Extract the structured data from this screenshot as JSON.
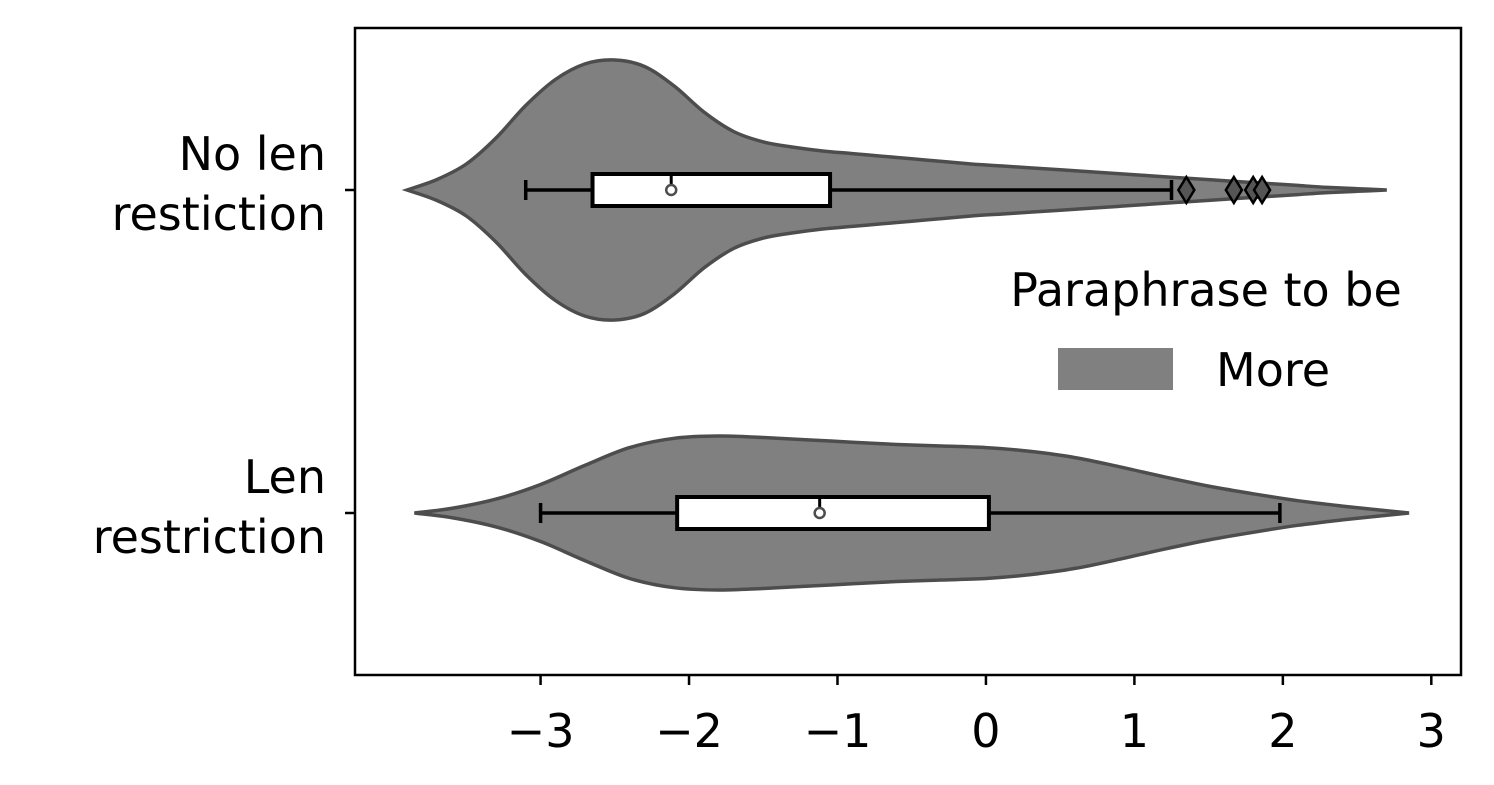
{
  "chart_data": {
    "type": "violin",
    "orientation": "horizontal",
    "categories": [
      {
        "lines": [
          "No len",
          "restiction"
        ]
      },
      {
        "lines": [
          "Len",
          "restriction"
        ]
      }
    ],
    "x_ticks": [
      -3,
      -2,
      -1,
      0,
      1,
      2,
      3
    ],
    "x_tick_labels": [
      "−3",
      "−2",
      "−1",
      "0",
      "1",
      "2",
      "3"
    ],
    "xlim": [
      -4.25,
      3.2
    ],
    "legend": {
      "title": "Paraphrase to be",
      "entries": [
        "More"
      ],
      "placement": "center-right"
    },
    "fill_color": "#808080",
    "edge_color": "#4d4d4d",
    "violins": [
      {
        "range": [
          -3.9,
          2.7
        ],
        "density_profile": [
          [
            -3.9,
            0.0
          ],
          [
            -3.7,
            0.08
          ],
          [
            -3.5,
            0.2
          ],
          [
            -3.3,
            0.4
          ],
          [
            -3.1,
            0.65
          ],
          [
            -2.9,
            0.85
          ],
          [
            -2.7,
            0.97
          ],
          [
            -2.5,
            1.0
          ],
          [
            -2.3,
            0.95
          ],
          [
            -2.1,
            0.8
          ],
          [
            -1.9,
            0.6
          ],
          [
            -1.7,
            0.45
          ],
          [
            -1.5,
            0.37
          ],
          [
            -1.3,
            0.33
          ],
          [
            -1.1,
            0.3
          ],
          [
            -0.9,
            0.28
          ],
          [
            -0.7,
            0.26
          ],
          [
            -0.5,
            0.24
          ],
          [
            -0.3,
            0.22
          ],
          [
            -0.1,
            0.2
          ],
          [
            0.1,
            0.185
          ],
          [
            0.3,
            0.17
          ],
          [
            0.5,
            0.155
          ],
          [
            0.7,
            0.14
          ],
          [
            0.9,
            0.125
          ],
          [
            1.1,
            0.11
          ],
          [
            1.3,
            0.095
          ],
          [
            1.5,
            0.08
          ],
          [
            1.7,
            0.065
          ],
          [
            1.9,
            0.05
          ],
          [
            2.1,
            0.035
          ],
          [
            2.3,
            0.02
          ],
          [
            2.5,
            0.01
          ],
          [
            2.7,
            0.0
          ]
        ],
        "whisker_low": -3.1,
        "q1": -2.65,
        "median": -2.12,
        "q3": -1.05,
        "whisker_high": 1.25,
        "outliers": [
          1.35,
          1.67,
          1.8,
          1.86
        ]
      },
      {
        "range": [
          -3.85,
          2.85
        ],
        "density_profile": [
          [
            -3.85,
            0.0
          ],
          [
            -3.6,
            0.06
          ],
          [
            -3.3,
            0.18
          ],
          [
            -3.0,
            0.37
          ],
          [
            -2.7,
            0.62
          ],
          [
            -2.4,
            0.85
          ],
          [
            -2.1,
            0.97
          ],
          [
            -1.8,
            1.0
          ],
          [
            -1.5,
            0.98
          ],
          [
            -1.2,
            0.95
          ],
          [
            -0.9,
            0.92
          ],
          [
            -0.6,
            0.89
          ],
          [
            -0.3,
            0.87
          ],
          [
            0.0,
            0.85
          ],
          [
            0.3,
            0.8
          ],
          [
            0.6,
            0.72
          ],
          [
            0.9,
            0.6
          ],
          [
            1.2,
            0.47
          ],
          [
            1.5,
            0.35
          ],
          [
            1.8,
            0.25
          ],
          [
            2.1,
            0.16
          ],
          [
            2.4,
            0.09
          ],
          [
            2.7,
            0.03
          ],
          [
            2.85,
            0.0
          ]
        ],
        "whisker_low": -3.0,
        "q1": -2.08,
        "median": -1.12,
        "q3": 0.02,
        "whisker_high": 1.98,
        "outliers": []
      }
    ]
  }
}
